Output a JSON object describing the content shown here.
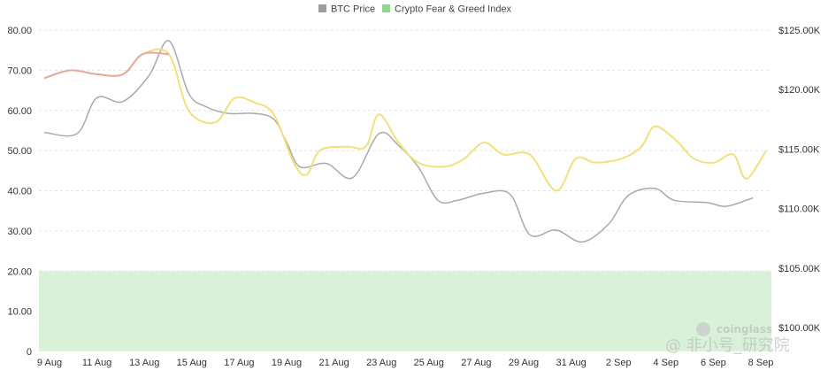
{
  "chart_data": {
    "type": "line",
    "legend": {
      "placement": "top-center"
    },
    "x_labels": [
      "9 Aug",
      "11 Aug",
      "13 Aug",
      "15 Aug",
      "17 Aug",
      "19 Aug",
      "21 Aug",
      "23 Aug",
      "25 Aug",
      "27 Aug",
      "29 Aug",
      "31 Aug",
      "2 Sep",
      "4 Sep",
      "6 Sep",
      "8 Sep"
    ],
    "y_left": {
      "ticks": [
        "0",
        "10.00",
        "20.00",
        "30.00",
        "40.00",
        "50.00",
        "60.00",
        "70.00",
        "80.00"
      ],
      "range": [
        0,
        80
      ]
    },
    "y_right": {
      "ticks": [
        "$100.00K",
        "$105.00K",
        "$110.00K",
        "$115.00K",
        "$120.00K",
        "$125.00K"
      ],
      "range": [
        98000,
        125000
      ]
    },
    "greed_zone": {
      "from": 0,
      "to": 20,
      "color": "#d9f0d9"
    },
    "series": [
      {
        "name": "BTC Price",
        "color": "#aaaaaa",
        "axis": "right",
        "values": [
          [
            0,
            116400
          ],
          [
            1,
            116300
          ],
          [
            1.6,
            119300
          ],
          [
            2.4,
            119000
          ],
          [
            3.2,
            121200
          ],
          [
            3.8,
            124100
          ],
          [
            4.4,
            119700
          ],
          [
            4.9,
            118600
          ],
          [
            5.6,
            118000
          ],
          [
            6.4,
            118000
          ],
          [
            7,
            117500
          ],
          [
            7.4,
            115500
          ],
          [
            7.8,
            113500
          ],
          [
            8.6,
            113800
          ],
          [
            9.4,
            112600
          ],
          [
            10.2,
            116300
          ],
          [
            10.8,
            115300
          ],
          [
            11.4,
            113500
          ],
          [
            12,
            110700
          ],
          [
            12.6,
            110700
          ],
          [
            13.4,
            111300
          ],
          [
            14.2,
            111200
          ],
          [
            14.8,
            107800
          ],
          [
            15.6,
            108200
          ],
          [
            16.4,
            107200
          ],
          [
            17.2,
            108700
          ],
          [
            17.8,
            111100
          ],
          [
            18.6,
            111700
          ],
          [
            19.2,
            110700
          ],
          [
            20.2,
            110500
          ],
          [
            20.8,
            110200
          ],
          [
            21.6,
            110900
          ]
        ]
      },
      {
        "name": "Crypto Fear & Greed Index",
        "color": "#f2e07a",
        "axis": "left",
        "values": [
          [
            0,
            68
          ],
          [
            0.8,
            70
          ],
          [
            1.6,
            69
          ],
          [
            2.4,
            69
          ],
          [
            3.0,
            74
          ],
          [
            3.8,
            74
          ],
          [
            4.4,
            60
          ],
          [
            5.2,
            57
          ],
          [
            5.8,
            63
          ],
          [
            6.4,
            62
          ],
          [
            7.0,
            59
          ],
          [
            7.6,
            47
          ],
          [
            8.0,
            44
          ],
          [
            8.4,
            50
          ],
          [
            9.2,
            51
          ],
          [
            9.8,
            51
          ],
          [
            10.2,
            59
          ],
          [
            10.8,
            52
          ],
          [
            11.4,
            47
          ],
          [
            12.2,
            46
          ],
          [
            12.8,
            48
          ],
          [
            13.4,
            52
          ],
          [
            14.0,
            49
          ],
          [
            14.8,
            49
          ],
          [
            15.6,
            40
          ],
          [
            16.2,
            48
          ],
          [
            16.8,
            47
          ],
          [
            17.6,
            48
          ],
          [
            18.2,
            51
          ],
          [
            18.6,
            56
          ],
          [
            19.2,
            53
          ],
          [
            19.8,
            48
          ],
          [
            20.4,
            47
          ],
          [
            21.0,
            49
          ],
          [
            21.4,
            43
          ],
          [
            22.0,
            50
          ]
        ]
      }
    ]
  },
  "watermark": {
    "brand": "coinglass",
    "handle": "@ 非小号_研究院"
  }
}
